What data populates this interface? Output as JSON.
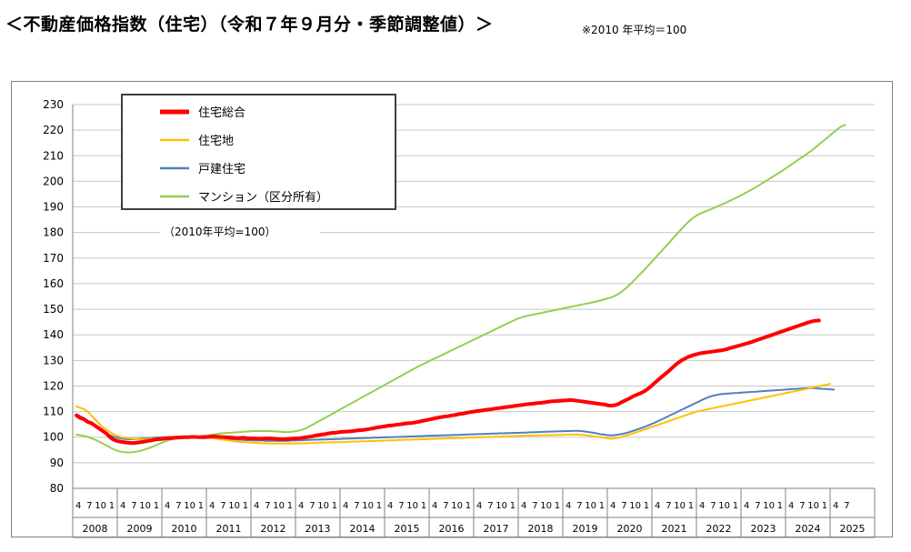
{
  "header": {
    "title": "＜不動産価格指数（住宅）（令和７年９月分・季節調整値）＞",
    "note": "※2010 年平均＝100"
  },
  "chart_data": {
    "type": "line",
    "title": "不動産価格指数（住宅）（令和７年９月分・季節調整値）",
    "basis_label": "（2010年平均=100）",
    "ylim": [
      80,
      230
    ],
    "yticks": [
      80,
      90,
      100,
      110,
      120,
      130,
      140,
      150,
      160,
      170,
      180,
      190,
      200,
      210,
      220,
      230
    ],
    "grid": true,
    "legend_position": "top-left",
    "month_labels": [
      "4",
      "7",
      "10",
      "1"
    ],
    "years": [
      "2008",
      "2009",
      "2010",
      "2011",
      "2012",
      "2013",
      "2014",
      "2015",
      "2016",
      "2017",
      "2018",
      "2019",
      "2020",
      "2021",
      "2022",
      "2023",
      "2024",
      "2025"
    ],
    "x_start": "2008-04",
    "x_end": "2025-09",
    "series": [
      {
        "name": "住宅総合",
        "color": "#ff0000",
        "line_weight": "bold",
        "values": [
          108.5,
          107.5,
          107,
          106,
          105.5,
          104.5,
          103.5,
          102.5,
          101.5,
          100,
          99,
          98.5,
          98.2,
          98,
          97.8,
          97.7,
          97.8,
          98,
          98.2,
          98.5,
          98.7,
          99,
          99.2,
          99.3,
          99.5,
          99.6,
          99.7,
          99.8,
          99.9,
          100,
          100,
          100.1,
          100.1,
          100,
          100,
          100,
          100.2,
          100.3,
          100.2,
          100.1,
          100,
          99.9,
          99.8,
          99.7,
          99.7,
          99.8,
          99.6,
          99.5,
          99.5,
          99.4,
          99.4,
          99.5,
          99.5,
          99.4,
          99.3,
          99.2,
          99.2,
          99.3,
          99.4,
          99.5,
          99.6,
          99.8,
          100,
          100.2,
          100.5,
          100.8,
          101,
          101.2,
          101.5,
          101.7,
          101.8,
          102,
          102.1,
          102.2,
          102.3,
          102.5,
          102.7,
          102.8,
          103,
          103.2,
          103.5,
          103.8,
          104,
          104.2,
          104.5,
          104.6,
          104.8,
          105,
          105.2,
          105.4,
          105.5,
          105.7,
          106,
          106.3,
          106.6,
          106.9,
          107.2,
          107.5,
          107.8,
          108,
          108.2,
          108.5,
          108.7,
          109,
          109.2,
          109.5,
          109.8,
          110,
          110.2,
          110.4,
          110.6,
          110.8,
          111,
          111.2,
          111.4,
          111.6,
          111.8,
          112,
          112.2,
          112.4,
          112.6,
          112.8,
          113,
          113.1,
          113.3,
          113.4,
          113.6,
          113.8,
          114,
          114.1,
          114.2,
          114.3,
          114.4,
          114.5,
          114.4,
          114.2,
          114,
          113.8,
          113.6,
          113.4,
          113.2,
          113,
          112.8,
          112.5,
          112.3,
          112.5,
          113,
          113.8,
          114.5,
          115.2,
          116,
          116.6,
          117.2,
          118,
          119,
          120.2,
          121.5,
          122.8,
          124,
          125.2,
          126.5,
          127.8,
          129,
          130,
          130.8,
          131.5,
          132,
          132.4,
          132.8,
          133,
          133.2,
          133.4,
          133.6,
          133.8,
          134,
          134.3,
          134.8,
          135.2,
          135.6,
          136,
          136.4,
          136.8,
          137.3,
          137.8,
          138.3,
          138.8,
          139.3,
          139.8,
          140.3,
          140.8,
          141.3,
          141.8,
          142.3,
          142.8,
          143.3,
          143.8,
          144.3,
          144.8,
          145.2,
          145.5,
          145.6
        ]
      },
      {
        "name": "住宅地",
        "color": "#ffc000",
        "line_weight": "thin",
        "values": [
          112,
          111.5,
          111,
          110,
          108.5,
          107,
          105.5,
          104,
          103,
          102,
          101.2,
          100.5,
          100,
          99.8,
          99.6,
          99.4,
          99.3,
          99.2,
          99.2,
          99.3,
          99.4,
          99.5,
          99.6,
          99.7,
          99.8,
          99.9,
          100,
          100,
          100.1,
          100.1,
          100.2,
          100.1,
          100,
          99.9,
          99.9,
          99.8,
          99.7,
          99.5,
          99.3,
          99.1,
          98.9,
          98.7,
          98.5,
          98.3,
          98.2,
          98.1,
          98,
          97.9,
          97.8,
          97.7,
          97.6,
          97.6,
          97.5,
          97.5,
          97.5,
          97.5,
          97.5,
          97.5,
          97.5,
          97.5,
          97.6,
          97.6,
          97.7,
          97.7,
          97.8,
          97.8,
          97.9,
          97.9,
          98,
          98,
          98,
          98.1,
          98.1,
          98.2,
          98.2,
          98.3,
          98.3,
          98.4,
          98.4,
          98.5,
          98.5,
          98.6,
          98.6,
          98.7,
          98.7,
          98.8,
          98.8,
          98.9,
          98.9,
          99,
          99,
          99.1,
          99.1,
          99.2,
          99.2,
          99.3,
          99.3,
          99.4,
          99.4,
          99.5,
          99.5,
          99.6,
          99.6,
          99.7,
          99.7,
          99.8,
          99.8,
          99.9,
          99.9,
          100,
          100,
          100.1,
          100.1,
          100.2,
          100.2,
          100.3,
          100.3,
          100.4,
          100.4,
          100.5,
          100.5,
          100.6,
          100.6,
          100.6,
          100.7,
          100.7,
          100.8,
          100.8,
          100.8,
          100.9,
          100.9,
          100.9,
          101,
          101,
          101,
          101,
          100.9,
          100.8,
          100.6,
          100.4,
          100.2,
          100,
          99.8,
          99.6,
          99.4,
          99.5,
          99.8,
          100.2,
          100.6,
          101,
          101.5,
          102,
          102.5,
          103,
          103.5,
          104,
          104.5,
          105,
          105.5,
          106,
          106.5,
          107,
          107.5,
          108,
          108.5,
          109,
          109.5,
          110,
          110.3,
          110.6,
          110.9,
          111.2,
          111.5,
          111.8,
          112.1,
          112.4,
          112.7,
          113,
          113.3,
          113.6,
          113.9,
          114.2,
          114.5,
          114.8,
          115.1,
          115.4,
          115.7,
          116,
          116.3,
          116.6,
          116.9,
          117.2,
          117.5,
          117.8,
          118.1,
          118.4,
          118.7,
          119,
          119.3,
          119.6,
          119.9,
          120.2,
          120.5,
          120.8
        ]
      },
      {
        "name": "戸建住宅",
        "color": "#4f81bd",
        "line_weight": "thin",
        "values": [
          109,
          108.2,
          107.5,
          106.5,
          105.5,
          104.5,
          103.5,
          102.5,
          101.5,
          100.8,
          100.2,
          99.8,
          99.5,
          99.3,
          99.2,
          99.2,
          99.3,
          99.4,
          99.5,
          99.6,
          99.7,
          99.8,
          99.9,
          100,
          100,
          100.1,
          100.1,
          100.2,
          100.2,
          100.1,
          100,
          100,
          100,
          100,
          99.9,
          99.8,
          99.8,
          99.7,
          99.6,
          99.5,
          99.4,
          99.3,
          99.2,
          99.1,
          99,
          98.9,
          98.8,
          98.8,
          98.7,
          98.7,
          98.7,
          98.6,
          98.6,
          98.6,
          98.6,
          98.6,
          98.6,
          98.6,
          98.7,
          98.7,
          98.8,
          98.8,
          98.9,
          98.9,
          99,
          99,
          99.1,
          99.1,
          99.2,
          99.2,
          99.3,
          99.3,
          99.4,
          99.4,
          99.5,
          99.5,
          99.6,
          99.6,
          99.7,
          99.7,
          99.8,
          99.8,
          99.9,
          99.9,
          100,
          100,
          100.1,
          100.1,
          100.2,
          100.2,
          100.3,
          100.3,
          100.4,
          100.4,
          100.5,
          100.5,
          100.6,
          100.6,
          100.7,
          100.7,
          100.8,
          100.8,
          100.9,
          100.9,
          101,
          101,
          101.1,
          101.1,
          101.2,
          101.2,
          101.3,
          101.3,
          101.4,
          101.4,
          101.5,
          101.5,
          101.6,
          101.6,
          101.7,
          101.7,
          101.8,
          101.8,
          101.9,
          101.9,
          102,
          102,
          102.1,
          102.1,
          102.2,
          102.2,
          102.3,
          102.3,
          102.4,
          102.4,
          102.5,
          102.5,
          102.4,
          102.2,
          102,
          101.8,
          101.5,
          101.2,
          101,
          100.8,
          100.7,
          100.8,
          101,
          101.3,
          101.6,
          102,
          102.5,
          103,
          103.5,
          104,
          104.6,
          105.2,
          105.8,
          106.5,
          107.2,
          107.9,
          108.6,
          109.3,
          110,
          110.7,
          111.4,
          112.1,
          112.8,
          113.5,
          114.2,
          114.9,
          115.5,
          116,
          116.4,
          116.7,
          116.9,
          117,
          117.1,
          117.2,
          117.3,
          117.4,
          117.5,
          117.6,
          117.7,
          117.8,
          117.9,
          118,
          118.1,
          118.2,
          118.3,
          118.4,
          118.5,
          118.6,
          118.7,
          118.8,
          118.9,
          119,
          119.1,
          119.2,
          119.2,
          119.1,
          119,
          118.9,
          118.8,
          118.7,
          118.6
        ]
      },
      {
        "name": "マンション（区分所有）",
        "color": "#92d050",
        "line_weight": "thin",
        "values": [
          101,
          100.8,
          100.5,
          100.2,
          99.6,
          99,
          98.3,
          97.6,
          96.8,
          96,
          95.3,
          94.7,
          94.3,
          94.1,
          94,
          94.1,
          94.3,
          94.6,
          95,
          95.5,
          96,
          96.6,
          97.2,
          97.8,
          98.4,
          98.9,
          99.3,
          99.6,
          99.8,
          99.9,
          100,
          100.1,
          100.2,
          100.3,
          100.5,
          100.7,
          100.9,
          101.1,
          101.3,
          101.5,
          101.6,
          101.7,
          101.8,
          101.9,
          102,
          102.1,
          102.2,
          102.3,
          102.4,
          102.4,
          102.4,
          102.4,
          102.4,
          102.3,
          102.2,
          102.1,
          102,
          102,
          102.1,
          102.3,
          102.6,
          103,
          103.6,
          104.4,
          105.2,
          106,
          106.8,
          107.6,
          108.4,
          109.2,
          110,
          110.8,
          111.6,
          112.4,
          113.2,
          114,
          114.8,
          115.6,
          116.4,
          117.2,
          118,
          118.8,
          119.6,
          120.4,
          121.2,
          122,
          122.8,
          123.6,
          124.4,
          125.2,
          126,
          126.8,
          127.6,
          128.3,
          129,
          129.7,
          130.4,
          131.1,
          131.8,
          132.5,
          133.2,
          133.9,
          134.6,
          135.3,
          136,
          136.7,
          137.4,
          138.1,
          138.8,
          139.5,
          140.2,
          140.9,
          141.6,
          142.3,
          143,
          143.7,
          144.4,
          145.1,
          145.8,
          146.4,
          146.9,
          147.3,
          147.6,
          147.9,
          148.2,
          148.5,
          148.8,
          149.1,
          149.4,
          149.7,
          150,
          150.3,
          150.6,
          150.9,
          151.2,
          151.5,
          151.8,
          152.1,
          152.4,
          152.7,
          153,
          153.4,
          153.8,
          154.2,
          154.6,
          155.2,
          156,
          157,
          158.2,
          159.6,
          161,
          162.5,
          164,
          165.5,
          167,
          168.6,
          170.2,
          171.8,
          173.4,
          175,
          176.6,
          178.2,
          179.8,
          181.4,
          183,
          184.4,
          185.6,
          186.6,
          187.4,
          188,
          188.6,
          189.2,
          189.8,
          190.4,
          191,
          191.7,
          192.4,
          193.1,
          193.8,
          194.5,
          195.3,
          196.1,
          196.9,
          197.7,
          198.6,
          199.5,
          200.4,
          201.3,
          202.2,
          203.1,
          204,
          205,
          206,
          207,
          208,
          209,
          210,
          211,
          212,
          213.2,
          214.4,
          215.6,
          216.8,
          218,
          219.2,
          220.4,
          221.5,
          222
        ]
      }
    ]
  }
}
